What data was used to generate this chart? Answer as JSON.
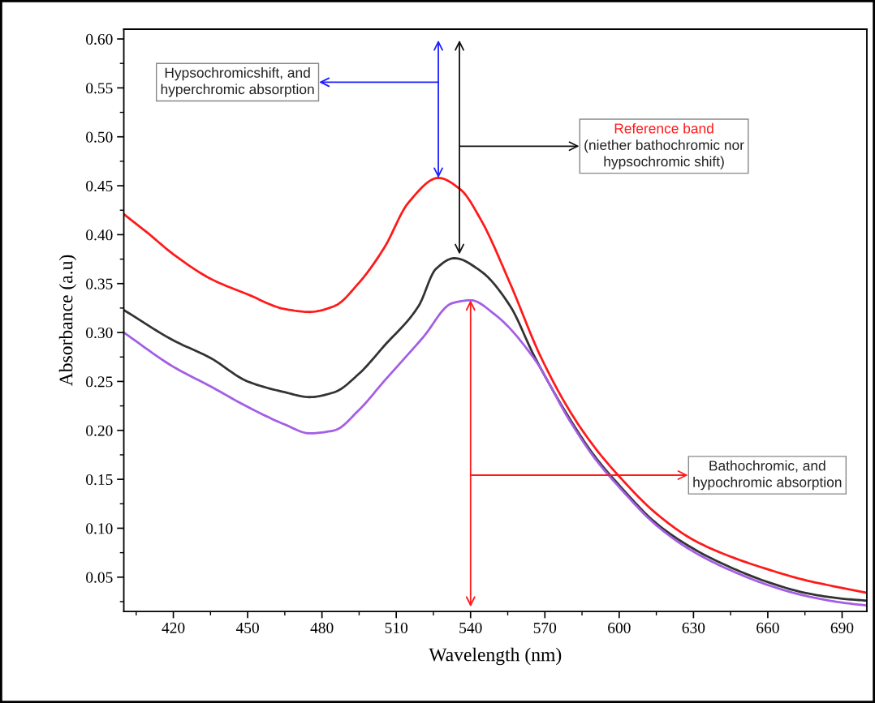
{
  "chart_data": {
    "type": "line",
    "xlabel": "Wavelength (nm)",
    "ylabel": "Absorbance (a.u)",
    "xlim": [
      400,
      700
    ],
    "xticks": [
      420,
      450,
      480,
      510,
      540,
      570,
      600,
      630,
      660,
      690
    ],
    "ylim": [
      0.015,
      0.61
    ],
    "yticks": [
      {
        "value": 0.05,
        "label": "0.05"
      },
      {
        "value": 0.1,
        "label": "0.10"
      },
      {
        "value": 0.15,
        "label": "0.15"
      },
      {
        "value": 0.2,
        "label": "0.20"
      },
      {
        "value": 0.25,
        "label": "0.25"
      },
      {
        "value": 0.3,
        "label": "0.30"
      },
      {
        "value": 0.35,
        "label": "0.35"
      },
      {
        "value": 0.4,
        "label": "0.40"
      },
      {
        "value": 0.45,
        "label": "0.45"
      },
      {
        "value": 0.5,
        "label": "0.50"
      },
      {
        "value": 0.55,
        "label": "0.55"
      },
      {
        "value": 0.6,
        "label": "0.60"
      }
    ],
    "grid": false,
    "marker": "none",
    "line_style": "solid",
    "series": [
      {
        "color": "#ff1a1a",
        "x": [
          400,
          410,
          420,
          435,
          450,
          465,
          475,
          485,
          495,
          505,
          515,
          527,
          536,
          544,
          556,
          568,
          580,
          590,
          600,
          615,
          630,
          645,
          660,
          675,
          690,
          700
        ],
        "values": [
          0.421,
          0.401,
          0.38,
          0.355,
          0.339,
          0.324,
          0.321,
          0.327,
          0.351,
          0.386,
          0.433,
          0.458,
          0.446,
          0.416,
          0.35,
          0.277,
          0.22,
          0.183,
          0.153,
          0.115,
          0.088,
          0.071,
          0.058,
          0.047,
          0.039,
          0.034
        ]
      },
      {
        "color": "#333333",
        "x": [
          400,
          420,
          435,
          450,
          465,
          475,
          485,
          495,
          505,
          519,
          526,
          533.5,
          544,
          556,
          565.5,
          580,
          590,
          600,
          615,
          630,
          645,
          660,
          675,
          690,
          700
        ],
        "values": [
          0.323,
          0.292,
          0.274,
          0.25,
          0.239,
          0.234,
          0.239,
          0.258,
          0.286,
          0.327,
          0.365,
          0.376,
          0.363,
          0.327,
          0.277,
          0.212,
          0.174,
          0.144,
          0.105,
          0.079,
          0.06,
          0.045,
          0.034,
          0.028,
          0.026
        ]
      },
      {
        "color": "#a45ee5",
        "x": [
          400,
          420,
          435,
          450,
          465,
          475,
          485,
          495,
          505,
          520.8,
          532.6,
          540,
          550,
          565.5,
          580,
          590,
          600,
          615,
          630,
          645,
          660,
          675,
          690,
          700
        ],
        "values": [
          0.3,
          0.265,
          0.245,
          0.224,
          0.206,
          0.197,
          0.2,
          0.221,
          0.25,
          0.295,
          0.33,
          0.333,
          0.318,
          0.274,
          0.21,
          0.172,
          0.142,
          0.103,
          0.076,
          0.057,
          0.042,
          0.031,
          0.024,
          0.021
        ]
      }
    ],
    "annotations": [
      "Hypsochromicshift, and\nhyperchromic absorption",
      "Reference band\n(niether bathochromic nor\nhypsochromic shift)",
      "Bathochromic, and\nhypochromic absorption"
    ]
  }
}
